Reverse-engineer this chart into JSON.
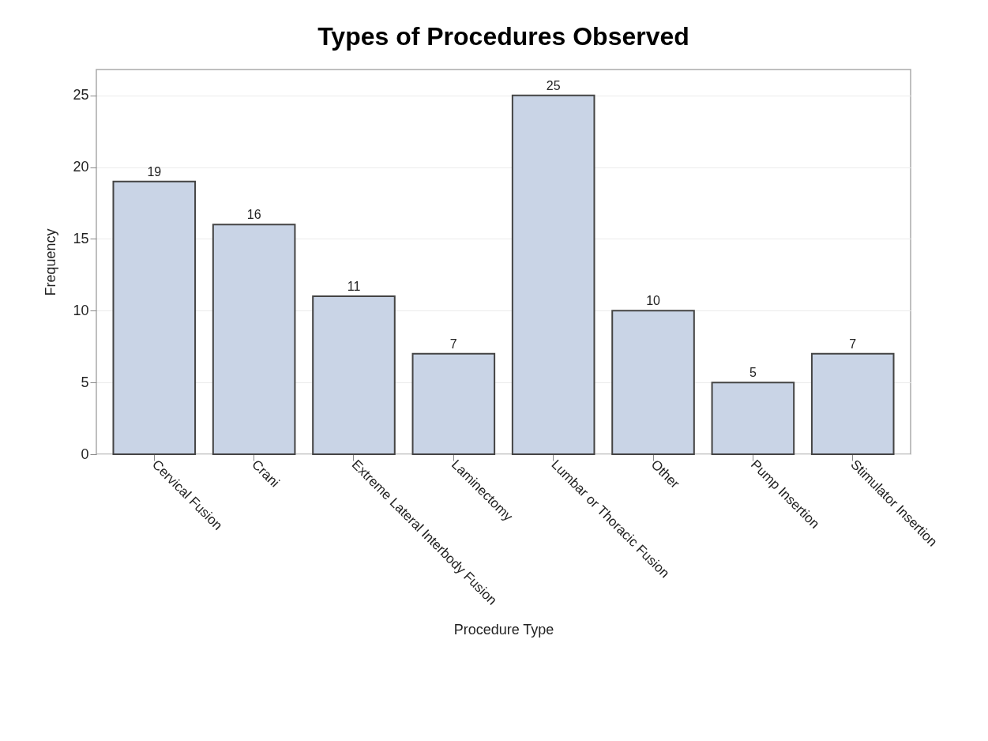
{
  "chart_data": {
    "type": "bar",
    "title": "Types of Procedures Observed",
    "xlabel": "Procedure Type",
    "ylabel": "Frequency",
    "categories": [
      "Cervical Fusion",
      "Crani",
      "Extreme Lateral Interbody Fusion",
      "Laminectomy",
      "Lumbar or Thoracic Fusion",
      "Other",
      "Pump Insertion",
      "Stimulator Insertion"
    ],
    "values": [
      19,
      16,
      11,
      7,
      25,
      10,
      5,
      7
    ],
    "color": "#c9d4e6",
    "ylim": [
      0,
      26.8
    ],
    "yticks": [
      0,
      5,
      10,
      15,
      20,
      25
    ],
    "grid": "y",
    "data_labels": true
  }
}
